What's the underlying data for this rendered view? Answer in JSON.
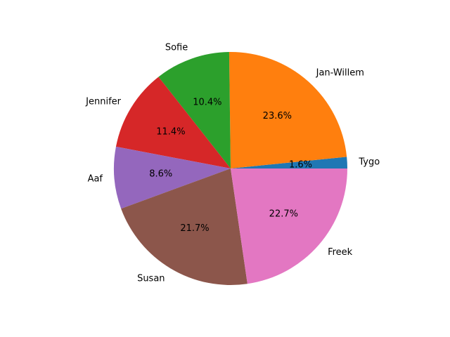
{
  "chart_data": {
    "type": "pie",
    "title": "",
    "start_angle_deg": 0,
    "direction": "counterclockwise",
    "categories": [
      "Tygo",
      "Jan-Willem",
      "Sofie",
      "Jennifer",
      "Aaf",
      "Susan",
      "Freek"
    ],
    "values": [
      1.6,
      23.6,
      10.4,
      11.4,
      8.6,
      21.7,
      22.7
    ],
    "percent_labels": [
      "1.6%",
      "23.6%",
      "10.4%",
      "11.4%",
      "8.6%",
      "21.7%",
      "22.7%"
    ],
    "colors": [
      "#1f77b4",
      "#ff7f0e",
      "#2ca02c",
      "#d62728",
      "#9467bd",
      "#8c564b",
      "#e377c2"
    ]
  }
}
